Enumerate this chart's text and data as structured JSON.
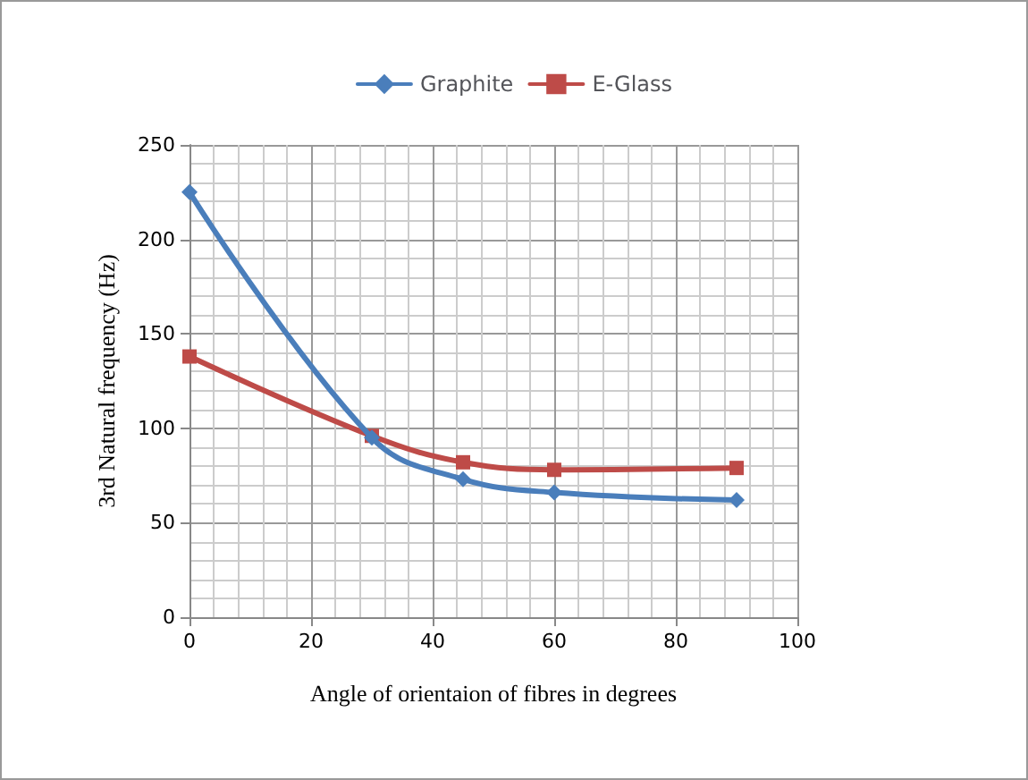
{
  "chart_data": {
    "type": "line",
    "xlabel": "Angle of orientaion of fibres in degrees",
    "ylabel": "3rd Natural frequency (Hz)",
    "x": [
      0,
      30,
      45,
      60,
      90
    ],
    "series": [
      {
        "name": "Graphite",
        "color": "#4a7ebb",
        "marker": "diamond",
        "values": [
          225,
          95,
          73,
          66,
          62
        ]
      },
      {
        "name": "E-Glass",
        "color": "#be4b48",
        "marker": "square",
        "values": [
          138,
          96,
          82,
          78,
          79
        ]
      }
    ],
    "xlim": [
      0,
      100
    ],
    "xticks": [
      0,
      20,
      40,
      60,
      80,
      100
    ],
    "ylim": [
      0,
      250
    ],
    "yticks": [
      0,
      50,
      100,
      150,
      200,
      250
    ],
    "grid": true,
    "legend": "top",
    "line_style": "solid"
  }
}
